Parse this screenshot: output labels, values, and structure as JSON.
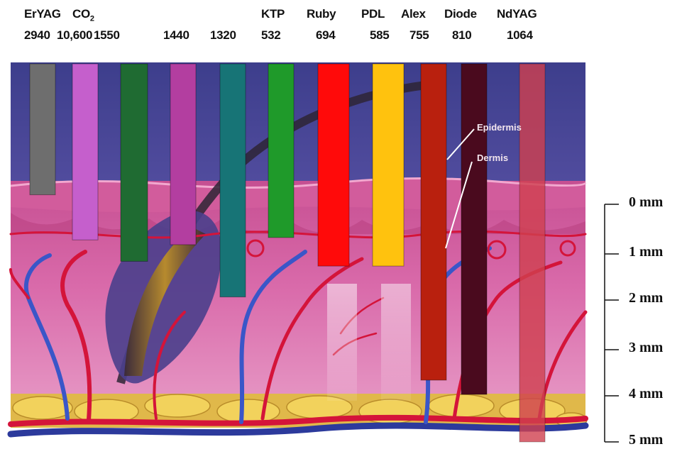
{
  "lasers": [
    {
      "name": "ErYAG",
      "sub": "",
      "wavelength": "2940",
      "color": "#6e6e6e",
      "depth_mm": -0.2
    },
    {
      "name": "CO",
      "sub": "2",
      "wavelength": "10,600",
      "color": "#c55fcc",
      "depth_mm": 0.75
    },
    {
      "name": "",
      "sub": "",
      "wavelength": "1550",
      "color": "#1f6b32",
      "depth_mm": 1.2
    },
    {
      "name": "",
      "sub": "",
      "wavelength": "1440",
      "color": "#b33ea0",
      "depth_mm": 0.85
    },
    {
      "name": "",
      "sub": "",
      "wavelength": "1320",
      "color": "#177476",
      "depth_mm": 1.95
    },
    {
      "name": "KTP",
      "sub": "",
      "wavelength": "532",
      "color": "#1f9a2a",
      "depth_mm": 0.7
    },
    {
      "name": "Ruby",
      "sub": "",
      "wavelength": "694",
      "color": "#ff0a0a",
      "depth_mm": 1.3
    },
    {
      "name": "PDL",
      "sub": "",
      "wavelength": "585",
      "color": "#ffc20e",
      "depth_mm": 1.3
    },
    {
      "name": "Alex",
      "sub": "",
      "wavelength": "755",
      "color": "#b9200e",
      "depth_mm": 3.7
    },
    {
      "name": "Diode",
      "sub": "",
      "wavelength": "810",
      "color": "#4a0a1e",
      "depth_mm": 4.0
    },
    {
      "name": "NdYAG",
      "sub": "",
      "wavelength": "1064",
      "color": "#d0404f",
      "depth_mm": 5.0
    }
  ],
  "depth_scale": [
    "0 mm",
    "1 mm",
    "2 mm",
    "3 mm",
    "4 mm",
    "5 mm"
  ],
  "skin_labels": {
    "epidermis": "Epidermis",
    "dermis": "Dermis"
  }
}
